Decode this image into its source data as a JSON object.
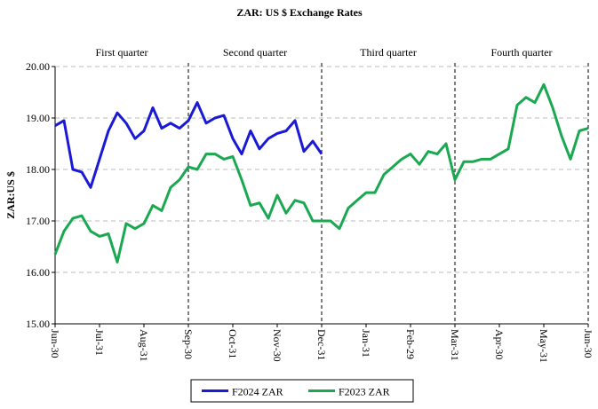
{
  "chart_data": {
    "type": "line",
    "title": "ZAR: US $ Exchange Rates",
    "y_label": "ZAR:US $",
    "annotations": [
      "First quarter",
      "Second quarter",
      "Third quarter",
      "Fourth quarter"
    ],
    "vlines": [
      3,
      6,
      9,
      12
    ],
    "x": [
      0,
      0.2,
      0.4,
      0.6,
      0.8,
      1,
      1.2,
      1.4,
      1.6,
      1.8,
      2,
      2.2,
      2.4,
      2.6,
      2.8,
      3,
      3.2,
      3.4,
      3.6,
      3.8,
      4,
      4.2,
      4.4,
      4.6,
      4.8,
      5,
      5.2,
      5.4,
      5.6,
      5.8,
      6,
      6.2,
      6.4,
      6.6,
      6.8,
      7,
      7.2,
      7.4,
      7.6,
      7.8,
      8,
      8.2,
      8.4,
      8.6,
      8.8,
      9,
      9.2,
      9.4,
      9.6,
      9.8,
      10,
      10.2,
      10.4,
      10.6,
      10.8,
      11,
      11.2,
      11.4,
      11.6,
      11.8,
      12
    ],
    "series": [
      {
        "name": "F2024 ZAR",
        "color": "#1a1ad6",
        "values": [
          18.85,
          18.95,
          18.0,
          17.95,
          17.65,
          18.2,
          18.75,
          19.1,
          18.9,
          18.6,
          18.75,
          19.2,
          18.8,
          18.9,
          18.8,
          18.95,
          19.3,
          18.9,
          19.0,
          19.05,
          18.6,
          18.3,
          18.75,
          18.4,
          18.6,
          18.7,
          18.75,
          18.95,
          18.35,
          18.55,
          18.3,
          null,
          null,
          null,
          null,
          null,
          null,
          null,
          null,
          null,
          null,
          null,
          null,
          null,
          null,
          null,
          null,
          null,
          null,
          null,
          null,
          null,
          null,
          null,
          null,
          null,
          null,
          null,
          null,
          null,
          null
        ]
      },
      {
        "name": "F2023 ZAR",
        "color": "#1aa850",
        "values": [
          16.35,
          16.8,
          17.05,
          17.1,
          16.8,
          16.7,
          16.75,
          16.2,
          16.95,
          16.85,
          16.95,
          17.3,
          17.2,
          17.65,
          17.8,
          18.05,
          18.0,
          18.3,
          18.3,
          18.2,
          18.25,
          17.8,
          17.3,
          17.35,
          17.05,
          17.5,
          17.15,
          17.4,
          17.35,
          17.0,
          17.0,
          17.0,
          16.85,
          17.25,
          17.4,
          17.55,
          17.55,
          17.9,
          18.05,
          18.2,
          18.3,
          18.1,
          18.35,
          18.3,
          18.5,
          17.8,
          18.15,
          18.15,
          18.2,
          18.2,
          18.3,
          18.4,
          19.25,
          19.4,
          19.3,
          19.65,
          19.2,
          18.65,
          18.2,
          18.75,
          18.8
        ]
      }
    ],
    "xlim": [
      0,
      12
    ],
    "xticks": [
      {
        "value": 0,
        "label": "Jun-30"
      },
      {
        "value": 1,
        "label": "Jul-31"
      },
      {
        "value": 2,
        "label": "Aug-31"
      },
      {
        "value": 3,
        "label": "Sep-30"
      },
      {
        "value": 4,
        "label": "Oct-31"
      },
      {
        "value": 5,
        "label": "Nov-30"
      },
      {
        "value": 6,
        "label": "Dec-31"
      },
      {
        "value": 7,
        "label": "Jan-31"
      },
      {
        "value": 8,
        "label": "Feb-29"
      },
      {
        "value": 9,
        "label": "Mar-31"
      },
      {
        "value": 10,
        "label": "Apr-30"
      },
      {
        "value": 11,
        "label": "May-31"
      },
      {
        "value": 12,
        "label": "Jun-30"
      }
    ],
    "ylim": [
      15,
      20
    ],
    "yticks": [
      {
        "value": 15,
        "label": "15.00"
      },
      {
        "value": 16,
        "label": "16.00"
      },
      {
        "value": 17,
        "label": "17.00"
      },
      {
        "value": 18,
        "label": "18.00"
      },
      {
        "value": 19,
        "label": "19.00"
      },
      {
        "value": 20,
        "label": "20.00"
      }
    ],
    "grid": true
  }
}
